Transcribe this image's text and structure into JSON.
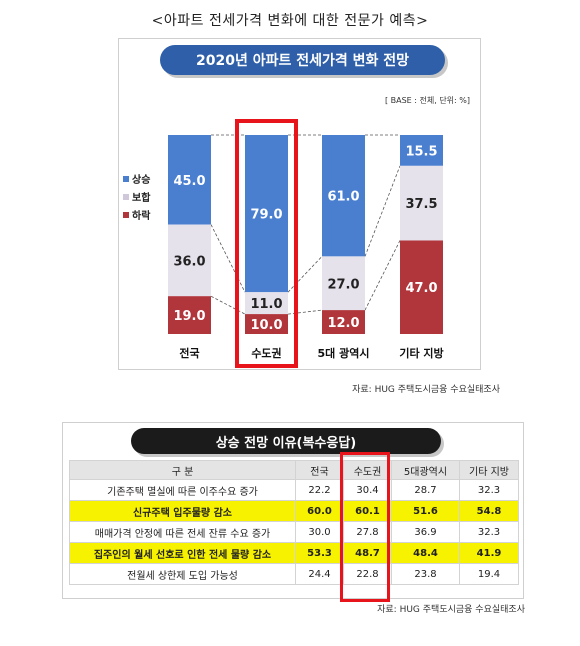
{
  "page_title": "<아파트 전세가격 변화에 대한 전문가 예측>",
  "chart_data": [
    {
      "type": "bar",
      "stacked": true,
      "title": "2020년 아파트 전세가격 변화 전망",
      "subtitle": "[ BASE : 전체, 단위: %]",
      "categories": [
        "전국",
        "수도권",
        "5대 광역시",
        "기타 지방"
      ],
      "series": [
        {
          "name": "상승",
          "values": [
            45.0,
            79.0,
            61.0,
            15.5
          ],
          "color": "#4a7fd0"
        },
        {
          "name": "보합",
          "values": [
            36.0,
            11.0,
            27.0,
            37.5
          ],
          "color": "#e6e2ec"
        },
        {
          "name": "하락",
          "values": [
            19.0,
            10.0,
            12.0,
            47.0
          ],
          "color": "#b0363c"
        }
      ],
      "labels": [
        [
          "45.0",
          "79.0",
          "61.0",
          "15.5"
        ],
        [
          "36.0",
          "11.0",
          "27.0",
          "37.5"
        ],
        [
          "19.0",
          "10.0",
          "12.0",
          "47.0"
        ]
      ],
      "highlighted_category": "수도권",
      "legend_position": "left",
      "ylim": [
        0,
        100
      ],
      "source": "자료: HUG 주택도시금융 수요실태조사"
    },
    {
      "type": "table",
      "title": "상승 전망 이유(복수응답)",
      "columns": [
        "구 분",
        "전국",
        "수도권",
        "5대광역시",
        "기타 지방"
      ],
      "rows": [
        {
          "label": "기존주택 멸실에 따른 이주수요 증가",
          "values": [
            "22.2",
            "30.4",
            "28.7",
            "32.3"
          ],
          "highlight": false
        },
        {
          "label": "신규주택 입주물량 감소",
          "values": [
            "60.0",
            "60.1",
            "51.6",
            "54.8"
          ],
          "highlight": true
        },
        {
          "label": "매매가격 안정에 따른 전세 잔류 수요 증가",
          "values": [
            "30.0",
            "27.8",
            "36.9",
            "32.3"
          ],
          "highlight": false
        },
        {
          "label": "집주인의 월세 선호로 인한 전세 물량 감소",
          "values": [
            "53.3",
            "48.7",
            "48.4",
            "41.9"
          ],
          "highlight": true
        },
        {
          "label": "전월세 상한제 도입 가능성",
          "values": [
            "24.4",
            "22.8",
            "23.8",
            "19.4"
          ],
          "highlight": false
        }
      ],
      "highlight_color": "#f7f200",
      "highlighted_column": "수도권",
      "source": "자료: HUG 주택도시금융 수요실태조사"
    }
  ]
}
